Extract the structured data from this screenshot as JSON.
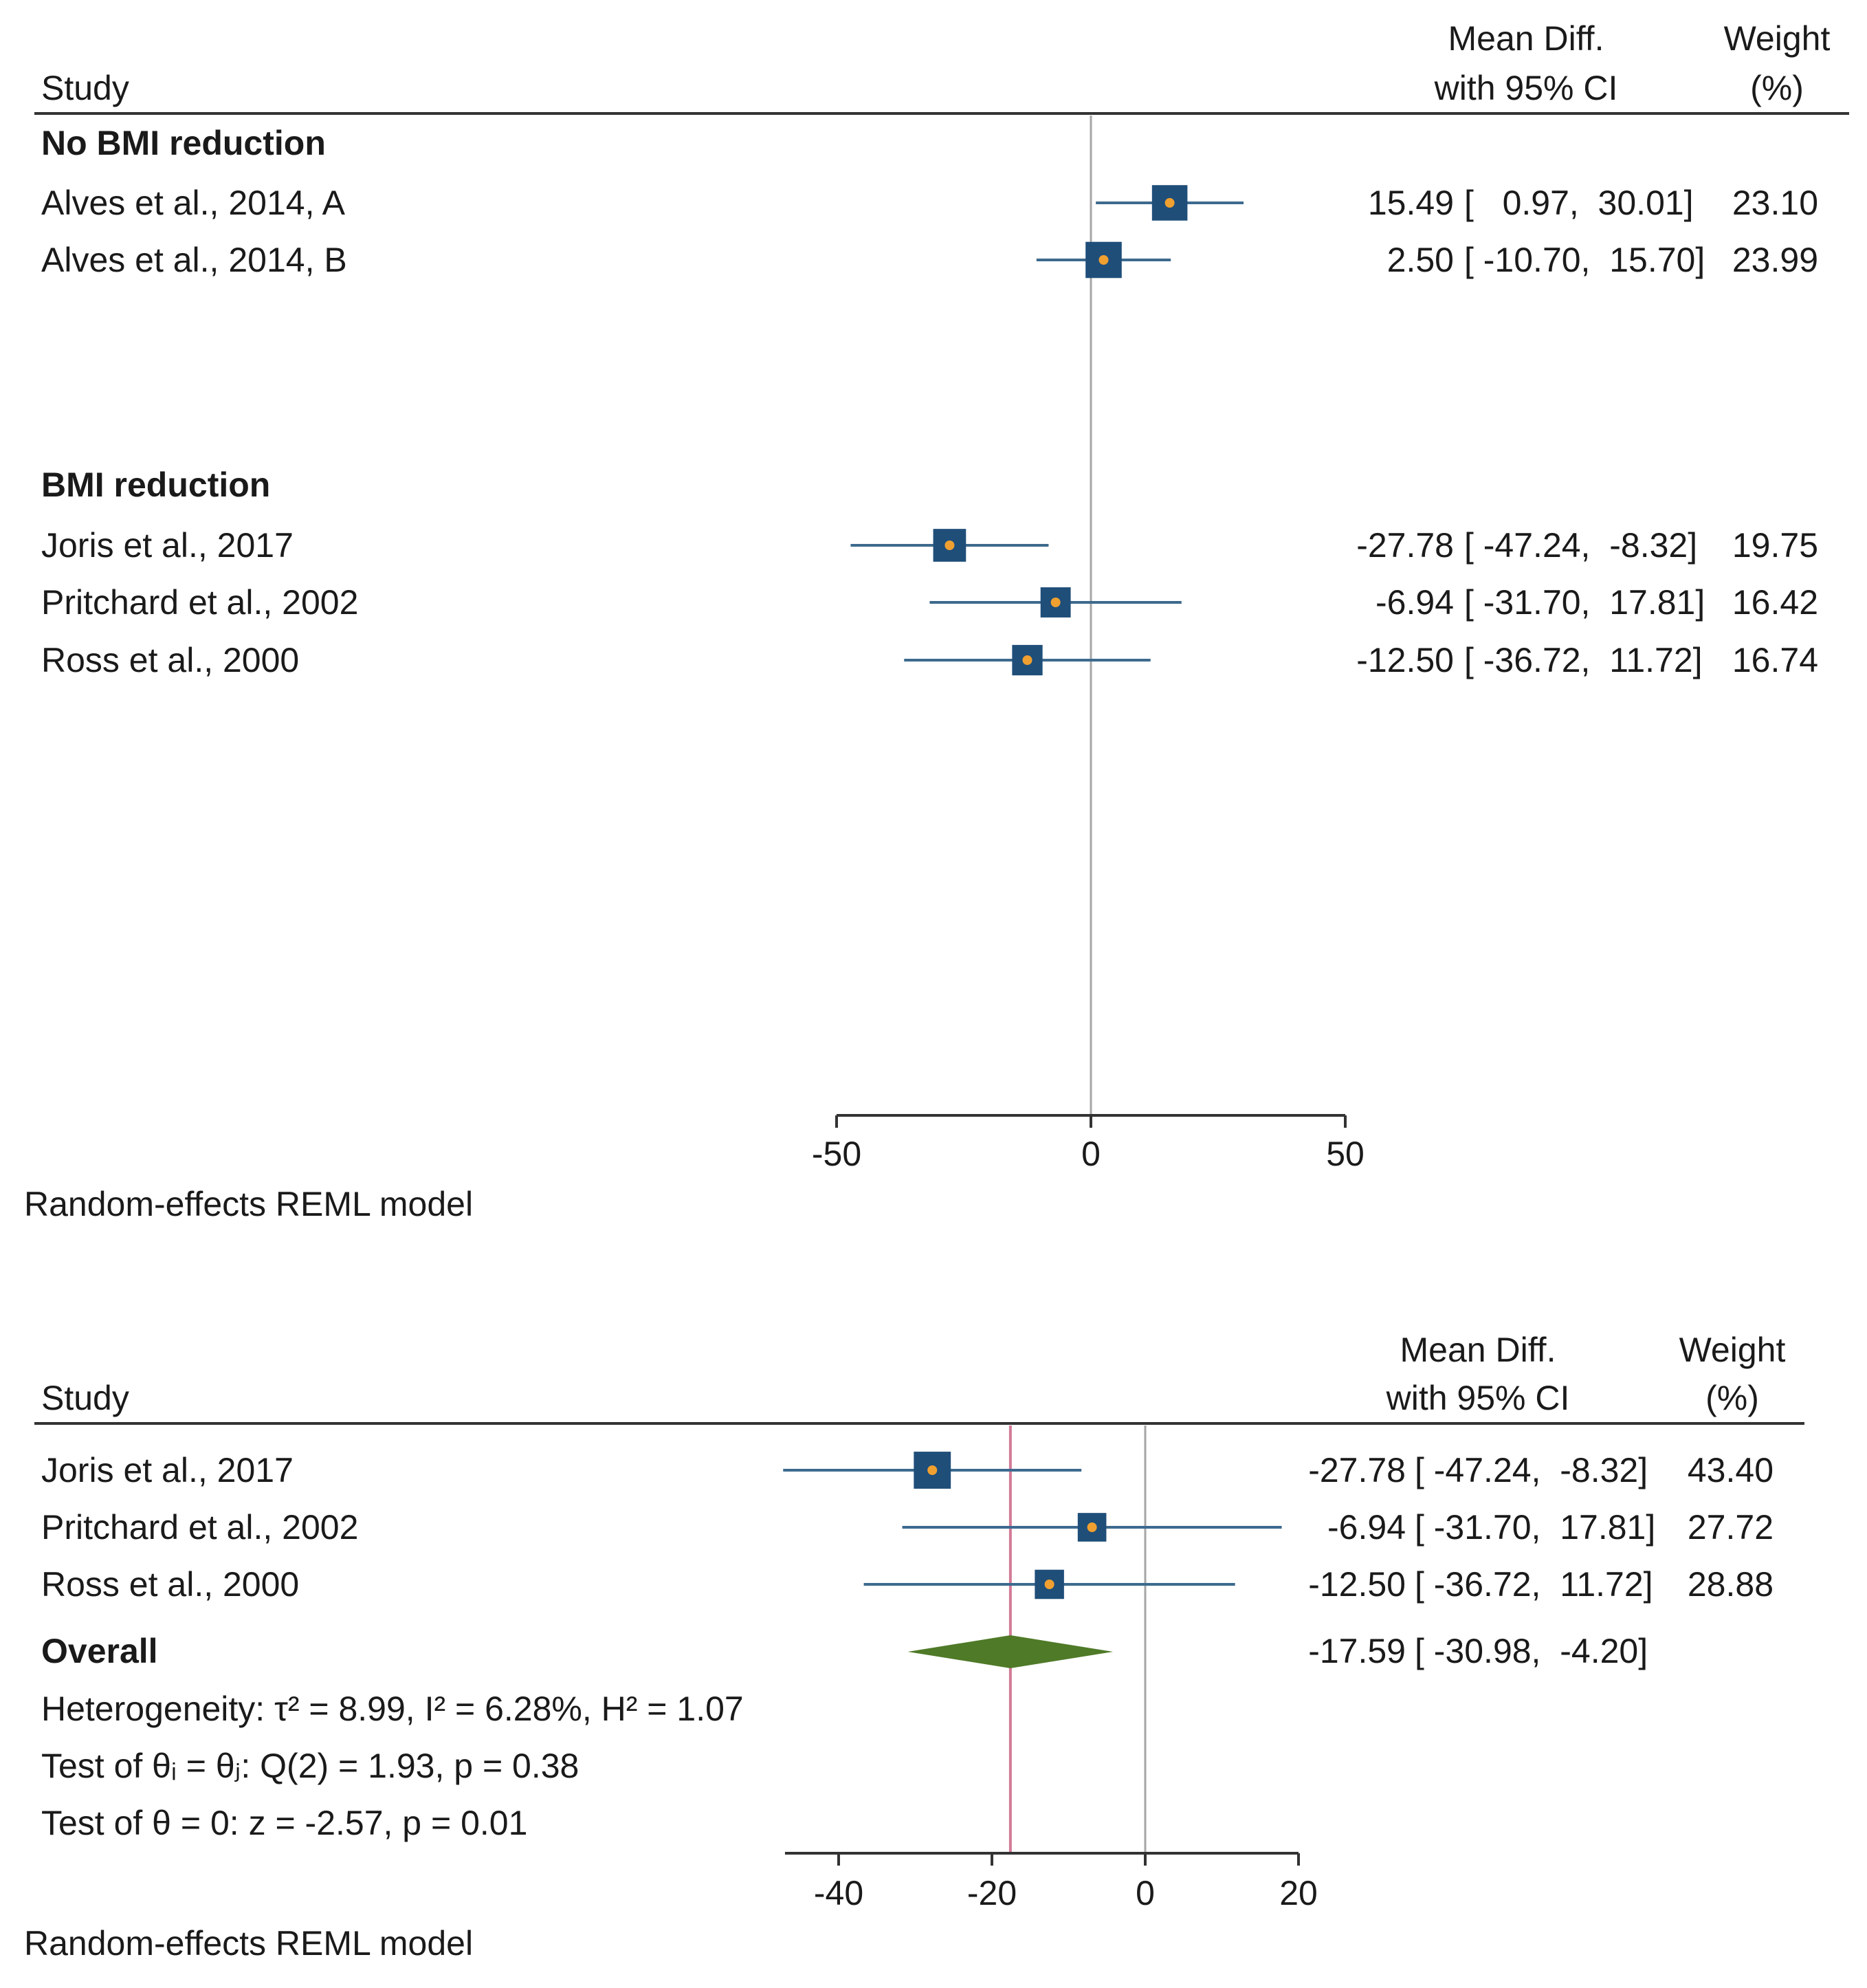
{
  "chart_data": [
    {
      "type": "forest",
      "header": {
        "study": "Study",
        "effect_line1": "Mean Diff.",
        "effect_line2": "with 95% CI",
        "weight_line1": "Weight",
        "weight_line2": "(%)"
      },
      "xlim": [
        -50,
        50
      ],
      "ticks": [
        -50,
        0,
        50
      ],
      "tick_labels": [
        "-50",
        "0",
        "50"
      ],
      "null_line": 0,
      "footer": "Random-effects REML model",
      "groups": [
        {
          "label": "No BMI reduction",
          "studies": [
            {
              "name": "Alves et al., 2014, A",
              "mean": 15.49,
              "lo": 0.97,
              "hi": 30.01,
              "weight": 23.1,
              "mean_text": "15.49",
              "ci_text": "[   0.97,  30.01]",
              "weight_text": "23.10"
            },
            {
              "name": "Alves et al., 2014, B",
              "mean": 2.5,
              "lo": -10.7,
              "hi": 15.7,
              "weight": 23.99,
              "mean_text": "2.50",
              "ci_text": "[ -10.70,  15.70]",
              "weight_text": "23.99"
            }
          ]
        },
        {
          "label": "BMI reduction",
          "studies": [
            {
              "name": "Joris et al., 2017",
              "mean": -27.78,
              "lo": -47.24,
              "hi": -8.32,
              "weight": 19.75,
              "mean_text": "-27.78",
              "ci_text": "[ -47.24,  -8.32]",
              "weight_text": "19.75"
            },
            {
              "name": "Pritchard et al., 2002",
              "mean": -6.94,
              "lo": -31.7,
              "hi": 17.81,
              "weight": 16.42,
              "mean_text": "-6.94",
              "ci_text": "[ -31.70,  17.81]",
              "weight_text": "16.42"
            },
            {
              "name": "Ross et al., 2000",
              "mean": -12.5,
              "lo": -36.72,
              "hi": 11.72,
              "weight": 16.74,
              "mean_text": "-12.50",
              "ci_text": "[ -36.72,  11.72]",
              "weight_text": "16.74"
            }
          ]
        }
      ]
    },
    {
      "type": "forest",
      "header": {
        "study": "Study",
        "effect_line1": "Mean Diff.",
        "effect_line2": "with 95% CI",
        "weight_line1": "Weight",
        "weight_line2": "(%)"
      },
      "xlim": [
        -47,
        20
      ],
      "ticks": [
        -40,
        -20,
        0,
        20
      ],
      "tick_labels": [
        "-40",
        "-20",
        "0",
        "20"
      ],
      "null_line": 0,
      "footer": "Random-effects REML model",
      "studies": [
        {
          "name": "Joris et al., 2017",
          "mean": -27.78,
          "lo": -47.24,
          "hi": -8.32,
          "weight": 43.4,
          "mean_text": "-27.78",
          "ci_text": "[ -47.24,  -8.32]",
          "weight_text": "43.40"
        },
        {
          "name": "Pritchard et al., 2002",
          "mean": -6.94,
          "lo": -31.7,
          "hi": 17.81,
          "weight": 27.72,
          "mean_text": "-6.94",
          "ci_text": "[ -31.70,  17.81]",
          "weight_text": "27.72"
        },
        {
          "name": "Ross et al., 2000",
          "mean": -12.5,
          "lo": -36.72,
          "hi": 11.72,
          "weight": 28.88,
          "mean_text": "-12.50",
          "ci_text": "[ -36.72,  11.72]",
          "weight_text": "28.88"
        }
      ],
      "overall": {
        "label": "Overall",
        "mean": -17.59,
        "lo": -30.98,
        "hi": -4.2,
        "mean_text": "-17.59",
        "ci_text": "[ -30.98,  -4.20]"
      },
      "stats": [
        "Heterogeneity: τ² = 8.99, I² = 6.28%, H² = 1.07",
        "Test of θᵢ = θⱼ: Q(2) = 1.93, p = 0.38",
        "Test of θ = 0: z = -2.57, p = 0.01"
      ]
    }
  ],
  "colors": {
    "square": "#1f4e79",
    "ci_line": "#3d6a8e",
    "dot": "#f0a030",
    "diamond": "#4f7a28",
    "overall_line": "#d27a96",
    "null_line": "#a6a6a6",
    "axis": "#333333"
  }
}
